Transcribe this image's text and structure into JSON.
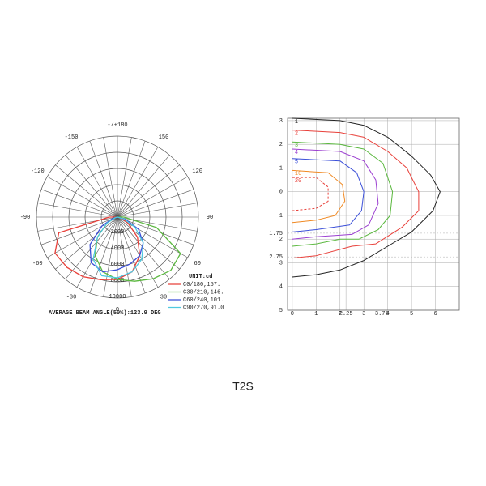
{
  "chart_data": [
    {
      "type": "polar",
      "angle_ticks": [
        {
          "value": 180,
          "label": "-/+180"
        },
        150,
        120,
        90,
        60,
        30,
        0,
        -30,
        -60,
        -90,
        -120,
        -150
      ],
      "rlim": [
        0,
        10000
      ],
      "rticks": [
        2000,
        4000,
        6000,
        8000,
        10000
      ],
      "angles": [
        -90,
        -75,
        -60,
        -45,
        -30,
        -15,
        0,
        15,
        30,
        45,
        60,
        75,
        90
      ],
      "legend_title": "UNIT:cd",
      "series": [
        {
          "name": "C0/180,157.",
          "color": "#e8403a",
          "values": [
            1000,
            7500,
            8900,
            8800,
            8500,
            8000,
            7700,
            7000,
            5500,
            3500,
            1500,
            500,
            0
          ]
        },
        {
          "name": "C30/210,146.",
          "color": "#5bb83f",
          "values": [
            0,
            500,
            1500,
            3500,
            5500,
            7000,
            7700,
            8200,
            8800,
            9300,
            9000,
            5000,
            800
          ]
        },
        {
          "name": "C60/240,101.",
          "color": "#3b4fd8",
          "values": [
            0,
            600,
            2200,
            4800,
            6500,
            7000,
            6500,
            6000,
            5500,
            4500,
            3000,
            1000,
            0
          ]
        },
        {
          "name": "C90/270,91.0",
          "color": "#4fc9e0",
          "values": [
            0,
            300,
            1500,
            3500,
            6000,
            7500,
            7500,
            7000,
            6000,
            4500,
            2500,
            800,
            0
          ]
        }
      ],
      "note": "AVERAGE BEAM ANGLE(50%):123.9 DEG"
    },
    {
      "type": "contour",
      "xlim": [
        -0.2,
        7
      ],
      "ylim": [
        -5,
        3.1
      ],
      "xticks": [
        0,
        1,
        2,
        2.25,
        3,
        3.75,
        4,
        5,
        6
      ],
      "yticks": [
        3,
        2,
        1,
        0,
        {
          "value": -1,
          "label": "1"
        },
        {
          "value": -1.75,
          "label": "1.75"
        },
        {
          "value": -2,
          "label": "2"
        },
        {
          "value": -2.75,
          "label": "2.75"
        },
        {
          "value": -3,
          "label": "3"
        },
        {
          "value": -4,
          "label": "4"
        },
        {
          "value": -5,
          "label": "5"
        }
      ],
      "contours": [
        {
          "label": "1",
          "color": "#222222",
          "x": [
            0,
            2,
            3,
            4,
            5,
            5.8,
            6.2,
            5.9,
            5,
            4,
            3,
            2,
            1,
            0
          ],
          "y": [
            3.1,
            3.0,
            2.8,
            2.3,
            1.5,
            0.7,
            0,
            -0.8,
            -1.7,
            -2.3,
            -2.9,
            -3.3,
            -3.5,
            -3.6
          ]
        },
        {
          "label": "2",
          "color": "#e8403a",
          "x": [
            0,
            2,
            3,
            4,
            4.8,
            5.3,
            5.3,
            4.6,
            3.5,
            2.5,
            1,
            0
          ],
          "y": [
            2.6,
            2.5,
            2.3,
            1.7,
            1,
            0,
            -0.8,
            -1.5,
            -2.2,
            -2.3,
            -2.7,
            -2.8
          ]
        },
        {
          "label": "3",
          "color": "#5bb83f",
          "x": [
            0,
            2,
            3,
            3.8,
            4.2,
            4.1,
            3.6,
            2.8,
            2,
            1,
            0
          ],
          "y": [
            2.1,
            2.0,
            1.8,
            1.2,
            0,
            -1,
            -1.6,
            -2,
            -2.0,
            -2.2,
            -2.3
          ]
        },
        {
          "label": "4",
          "color": "#9b3fd0",
          "x": [
            0,
            2,
            3,
            3.5,
            3.6,
            3.2,
            2.5,
            1,
            0
          ],
          "y": [
            1.8,
            1.7,
            1.3,
            0.5,
            -0.5,
            -1.4,
            -1.8,
            -1.9,
            -2
          ]
        },
        {
          "label": "5",
          "color": "#3b4fd8",
          "x": [
            0,
            2,
            2.7,
            3,
            2.9,
            2.4,
            1,
            0
          ],
          "y": [
            1.4,
            1.3,
            0.8,
            0,
            -0.8,
            -1.4,
            -1.6,
            -1.7
          ]
        },
        {
          "label": "10",
          "color": "#f08a24",
          "x": [
            0,
            1.5,
            2.1,
            2.2,
            1.8,
            1,
            0
          ],
          "y": [
            0.9,
            0.8,
            0.3,
            -0.4,
            -1,
            -1.2,
            -1.3
          ]
        },
        {
          "label": "20",
          "color": "#e8403a",
          "dashed": true,
          "x": [
            0,
            1,
            1.5,
            1.5,
            1,
            0
          ],
          "y": [
            0.6,
            0.6,
            0.2,
            -0.4,
            -0.7,
            -0.8
          ]
        }
      ]
    }
  ],
  "caption": "T2S"
}
